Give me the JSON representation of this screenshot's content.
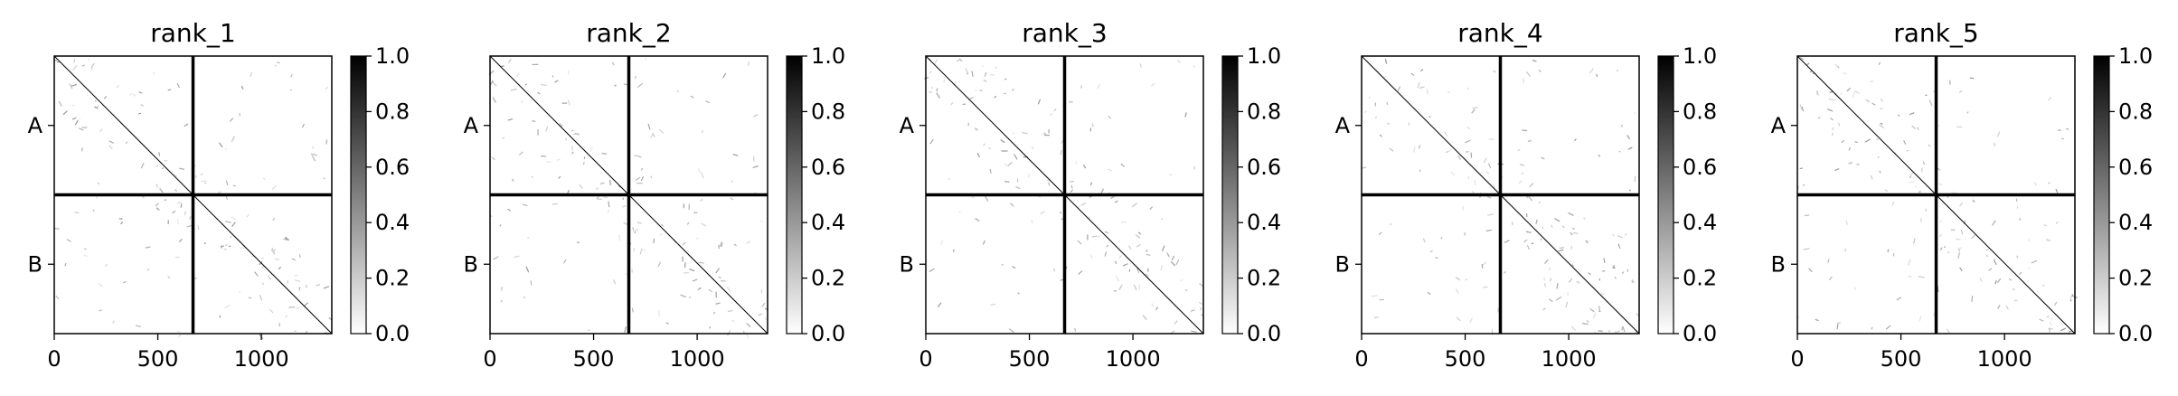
{
  "chart_data": [
    {
      "type": "heatmap",
      "title": "rank_1",
      "xlim": [
        0,
        1340
      ],
      "x_ticks": [
        0,
        500,
        1000
      ],
      "x_tick_labels": [
        "0",
        "500",
        "1000"
      ],
      "y_tick_labels": [
        "A",
        "B"
      ],
      "block_boundary": 670,
      "colorbar": {
        "min": 0.0,
        "max": 1.0,
        "ticks": [
          "0.0",
          "0.2",
          "0.4",
          "0.6",
          "0.8",
          "1.0"
        ],
        "colormap": "Greys"
      }
    },
    {
      "type": "heatmap",
      "title": "rank_2",
      "xlim": [
        0,
        1340
      ],
      "x_ticks": [
        0,
        500,
        1000
      ],
      "x_tick_labels": [
        "0",
        "500",
        "1000"
      ],
      "y_tick_labels": [
        "A",
        "B"
      ],
      "block_boundary": 670,
      "colorbar": {
        "min": 0.0,
        "max": 1.0,
        "ticks": [
          "0.0",
          "0.2",
          "0.4",
          "0.6",
          "0.8",
          "1.0"
        ],
        "colormap": "Greys"
      }
    },
    {
      "type": "heatmap",
      "title": "rank_3",
      "xlim": [
        0,
        1340
      ],
      "x_ticks": [
        0,
        500,
        1000
      ],
      "x_tick_labels": [
        "0",
        "500",
        "1000"
      ],
      "y_tick_labels": [
        "A",
        "B"
      ],
      "block_boundary": 670,
      "colorbar": {
        "min": 0.0,
        "max": 1.0,
        "ticks": [
          "0.0",
          "0.2",
          "0.4",
          "0.6",
          "0.8",
          "1.0"
        ],
        "colormap": "Greys"
      }
    },
    {
      "type": "heatmap",
      "title": "rank_4",
      "xlim": [
        0,
        1340
      ],
      "x_ticks": [
        0,
        500,
        1000
      ],
      "x_tick_labels": [
        "0",
        "500",
        "1000"
      ],
      "y_tick_labels": [
        "A",
        "B"
      ],
      "block_boundary": 670,
      "colorbar": {
        "min": 0.0,
        "max": 1.0,
        "ticks": [
          "0.0",
          "0.2",
          "0.4",
          "0.6",
          "0.8",
          "1.0"
        ],
        "colormap": "Greys"
      }
    },
    {
      "type": "heatmap",
      "title": "rank_5",
      "xlim": [
        0,
        1340
      ],
      "x_ticks": [
        0,
        500,
        1000
      ],
      "x_tick_labels": [
        "0",
        "500",
        "1000"
      ],
      "y_tick_labels": [
        "A",
        "B"
      ],
      "block_boundary": 670,
      "colorbar": {
        "min": 0.0,
        "max": 1.0,
        "ticks": [
          "0.0",
          "0.2",
          "0.4",
          "0.6",
          "0.8",
          "1.0"
        ],
        "colormap": "Greys"
      }
    }
  ]
}
